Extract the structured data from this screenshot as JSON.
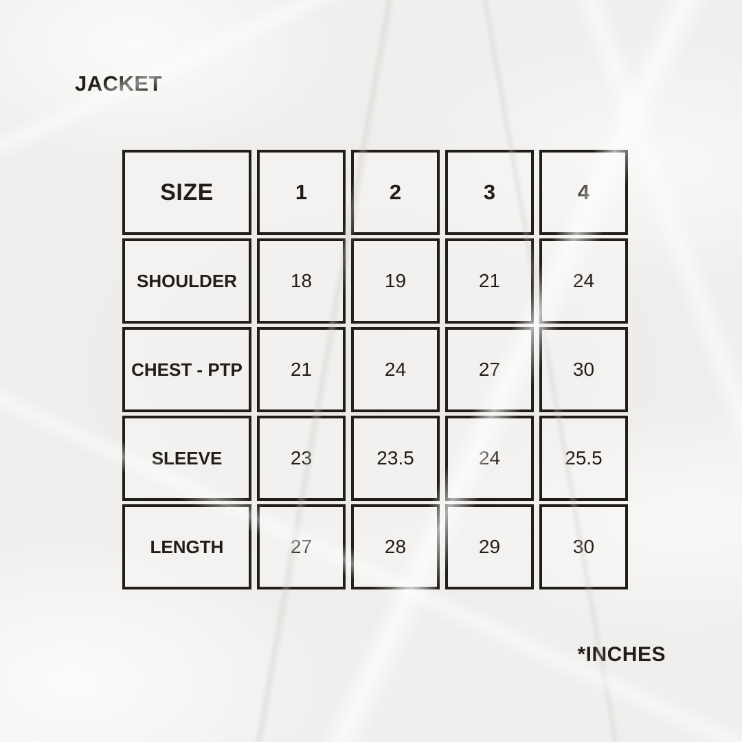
{
  "title": "JACKET",
  "footnote": "*INCHES",
  "colors": {
    "background": "#f0efed",
    "ink": "#211d18",
    "grid": "#211d18"
  },
  "chart_data": {
    "type": "table",
    "title": "JACKET",
    "unit_note": "*INCHES",
    "columns": [
      "SIZE",
      "1",
      "2",
      "3",
      "4"
    ],
    "rows": [
      {
        "label": "SHOULDER",
        "values": [
          "18",
          "19",
          "21",
          "24"
        ]
      },
      {
        "label": "CHEST - PTP",
        "values": [
          "21",
          "24",
          "27",
          "30"
        ]
      },
      {
        "label": "SLEEVE",
        "values": [
          "23",
          "23.5",
          "24",
          "25.5"
        ]
      },
      {
        "label": "LENGTH",
        "values": [
          "27",
          "28",
          "29",
          "30"
        ]
      }
    ]
  }
}
